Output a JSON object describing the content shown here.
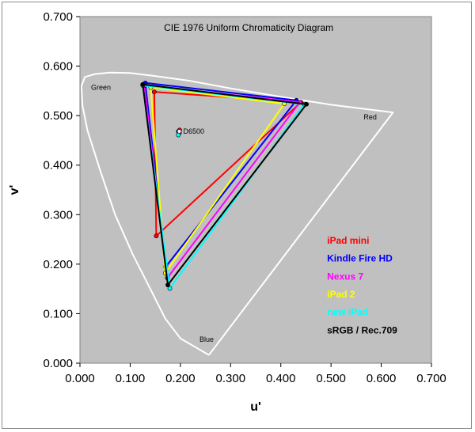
{
  "chart_data": {
    "type": "scatter",
    "title": "CIE 1976 Uniform Chromaticity Diagram",
    "xlabel": "u'",
    "ylabel": "v'",
    "xlim": [
      0,
      0.7
    ],
    "ylim": [
      0,
      0.7
    ],
    "x_ticks": [
      "0.000",
      "0.100",
      "0.200",
      "0.300",
      "0.400",
      "0.500",
      "0.600",
      "0.700"
    ],
    "y_ticks": [
      "0.000",
      "0.100",
      "0.200",
      "0.300",
      "0.400",
      "0.500",
      "0.600",
      "0.700"
    ],
    "grid": false,
    "background": "#c0c0c0",
    "legend_position": "lower-right",
    "region_labels": [
      {
        "text": "Green",
        "u": 0.022,
        "v": 0.552
      },
      {
        "text": "Red",
        "u": 0.565,
        "v": 0.492
      },
      {
        "text": "Blue",
        "u": 0.238,
        "v": 0.043
      }
    ],
    "white_point": {
      "name": "D6500",
      "u": 0.1978,
      "v": 0.4683
    },
    "spectral_locus": [
      [
        0.2568,
        0.0165
      ],
      [
        0.2,
        0.05
      ],
      [
        0.17,
        0.09
      ],
      [
        0.14,
        0.15
      ],
      [
        0.105,
        0.22
      ],
      [
        0.07,
        0.3
      ],
      [
        0.04,
        0.39
      ],
      [
        0.015,
        0.47
      ],
      [
        0.005,
        0.52
      ],
      [
        0.003,
        0.56
      ],
      [
        0.01,
        0.578
      ],
      [
        0.03,
        0.584
      ],
      [
        0.06,
        0.587
      ],
      [
        0.1,
        0.586
      ],
      [
        0.15,
        0.58
      ],
      [
        0.22,
        0.57
      ],
      [
        0.3,
        0.555
      ],
      [
        0.4,
        0.538
      ],
      [
        0.5,
        0.522
      ],
      [
        0.6234,
        0.5065
      ],
      [
        0.2568,
        0.0165
      ]
    ],
    "series": [
      {
        "name": "iPad mini",
        "color": "#ff0000",
        "points": [
          [
            0.44,
            0.527
          ],
          [
            0.148,
            0.548
          ],
          [
            0.152,
            0.257
          ],
          [
            0.44,
            0.527
          ]
        ],
        "white": [
          0.1985,
          0.471
        ]
      },
      {
        "name": "Kindle Fire HD",
        "color": "#0000ff",
        "points": [
          [
            0.431,
            0.531
          ],
          [
            0.13,
            0.566
          ],
          [
            0.171,
            0.195
          ],
          [
            0.431,
            0.531
          ]
        ],
        "white": [
          0.196,
          0.468
        ]
      },
      {
        "name": "Nexus 7",
        "color": "#ff00ff",
        "points": [
          [
            0.438,
            0.527
          ],
          [
            0.128,
            0.561
          ],
          [
            0.174,
            0.172
          ],
          [
            0.438,
            0.527
          ]
        ],
        "white": [
          0.198,
          0.465
        ]
      },
      {
        "name": "iPad 2",
        "color": "#ffff00",
        "points": [
          [
            0.407,
            0.524
          ],
          [
            0.141,
            0.557
          ],
          [
            0.17,
            0.182
          ],
          [
            0.407,
            0.524
          ]
        ],
        "white": [
          0.197,
          0.464
        ]
      },
      {
        "name": "new iPad",
        "color": "#00ffff",
        "points": [
          [
            0.447,
            0.523
          ],
          [
            0.125,
            0.561
          ],
          [
            0.179,
            0.151
          ],
          [
            0.447,
            0.523
          ]
        ],
        "white": [
          0.196,
          0.461
        ]
      },
      {
        "name": "sRGB / Rec.709",
        "color": "#000000",
        "points": [
          [
            0.451,
            0.523
          ],
          [
            0.125,
            0.563
          ],
          [
            0.175,
            0.158
          ],
          [
            0.451,
            0.523
          ]
        ]
      }
    ]
  }
}
